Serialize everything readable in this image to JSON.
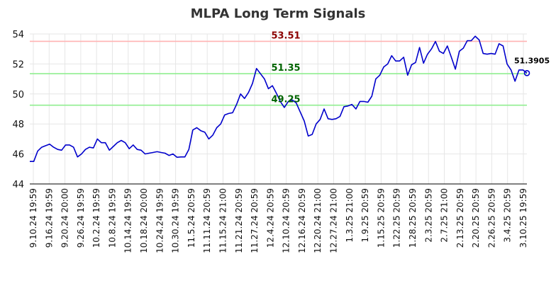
{
  "chart_data": {
    "type": "line",
    "title": "MLPA Long Term Signals",
    "xlabel": "",
    "ylabel": "",
    "ylim": [
      44,
      54
    ],
    "yticks": [
      "44",
      "46",
      "48",
      "50",
      "52",
      "54"
    ],
    "grid": true,
    "x_tick_labels": [
      "9.10.24 19:59",
      "9.16.24 19:59",
      "9.20.24 20:00",
      "9.26.24 19:59",
      "10.2.24 19:59",
      "10.8.24 19:59",
      "10.14.24 19:59",
      "10.18.24 20:00",
      "10.24.24 19:59",
      "10.30.24 19:59",
      "11.5.24 20:59",
      "11.11.24 20:59",
      "11.15.24 21:00",
      "11.21.24 20:59",
      "11.27.24 20:59",
      "12.4.24 20:59",
      "12.10.24 20:59",
      "12.16.24 20:59",
      "12.20.24 21:00",
      "12.27.24 21:00",
      "1.3.25 21:00",
      "1.9.25 20:59",
      "1.15.25 20:59",
      "1.22.25 20:59",
      "1.28.25 20:59",
      "2.3.25 20:59",
      "2.7.25 21:00",
      "2.13.25 20:59",
      "2.20.25 20:59",
      "2.26.25 20:59",
      "3.4.25 20:59",
      "3.10.25 19:59"
    ],
    "series": [
      {
        "name": "",
        "color": "#0000cc",
        "values": [
          45.5,
          45.5,
          46.2,
          46.45,
          46.55,
          46.65,
          46.45,
          46.3,
          46.25,
          46.6,
          46.6,
          46.45,
          45.8,
          46.0,
          46.3,
          46.45,
          46.4,
          47.0,
          46.75,
          46.75,
          46.25,
          46.5,
          46.75,
          46.9,
          46.75,
          46.35,
          46.6,
          46.3,
          46.25,
          46.0,
          46.05,
          46.1,
          46.15,
          46.1,
          46.05,
          45.9,
          46.0,
          45.78,
          45.8,
          45.8,
          46.3,
          47.6,
          47.75,
          47.55,
          47.45,
          47.0,
          47.25,
          47.75,
          48.0,
          48.6,
          48.7,
          48.75,
          49.3,
          50.0,
          49.7,
          50.1,
          50.7,
          51.7,
          51.35,
          51.0,
          50.35,
          50.55,
          50.05,
          49.5,
          49.1,
          49.5,
          49.6,
          49.4,
          48.8,
          48.2,
          47.2,
          47.3,
          48.0,
          48.3,
          49.0,
          48.35,
          48.3,
          48.35,
          48.5,
          49.15,
          49.2,
          49.3,
          49.0,
          49.5,
          49.5,
          49.45,
          49.85,
          51.0,
          51.25,
          51.8,
          52.0,
          52.55,
          52.2,
          52.2,
          52.45,
          51.25,
          51.95,
          52.1,
          53.1,
          52.05,
          52.65,
          53.0,
          53.5,
          52.85,
          52.7,
          53.2,
          52.45,
          51.65,
          52.85,
          53.05,
          53.55,
          53.55,
          53.85,
          53.6,
          52.7,
          52.65,
          52.7,
          52.65,
          53.35,
          53.2,
          52.0,
          51.6,
          50.85,
          51.6,
          51.6,
          51.39
        ]
      }
    ],
    "reference_lines": [
      {
        "value": 53.51,
        "label": "53.51",
        "color": "#ffb3b3",
        "label_color": "#8b0000"
      },
      {
        "value": 51.35,
        "label": "51.35",
        "color": "#90ee90",
        "label_color": "#006400"
      },
      {
        "value": 49.25,
        "label": "49.25",
        "color": "#90ee90",
        "label_color": "#006400"
      }
    ],
    "last_value_label": "51.3905"
  }
}
